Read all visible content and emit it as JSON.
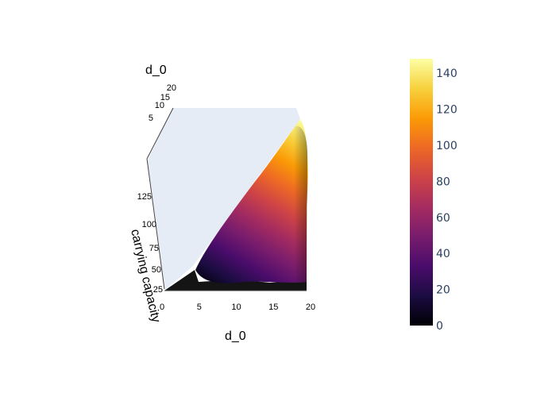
{
  "chart_data": {
    "type": "surface",
    "colorscale": "inferno",
    "colors": {
      "floor": "#e5ecf6",
      "shadow": "#141414",
      "colorbar_text": "#2a3f5f",
      "inferno": [
        "#000004",
        "#1b0c41",
        "#4a0c6b",
        "#781c6d",
        "#a52c60",
        "#cf4446",
        "#ed6925",
        "#fb9b06",
        "#f7d13d",
        "#fcffa4"
      ]
    },
    "axes": {
      "x": {
        "title": "d_0",
        "range": [
          0,
          20
        ],
        "ticks": [
          "0",
          "5",
          "10",
          "15",
          "20"
        ]
      },
      "y": {
        "title": "carrying capacity",
        "range": [
          25,
          150
        ],
        "ticks": [
          "25",
          "50",
          "75",
          "100",
          "125"
        ]
      },
      "z": {
        "title": "d_0",
        "range": [
          0,
          20
        ],
        "ticks": [
          "5",
          "10",
          "15",
          "20"
        ]
      }
    },
    "colorbar": {
      "range": [
        0,
        148
      ],
      "ticks": [
        "0",
        "20",
        "40",
        "60",
        "80",
        "100",
        "120",
        "140"
      ]
    },
    "surface_samples": [
      {
        "x": 5,
        "y": 25,
        "value": 0
      },
      {
        "x": 10,
        "y": 50,
        "value": 20
      },
      {
        "x": 15,
        "y": 100,
        "value": 80
      },
      {
        "x": 20,
        "y": 150,
        "value": 148
      }
    ]
  }
}
